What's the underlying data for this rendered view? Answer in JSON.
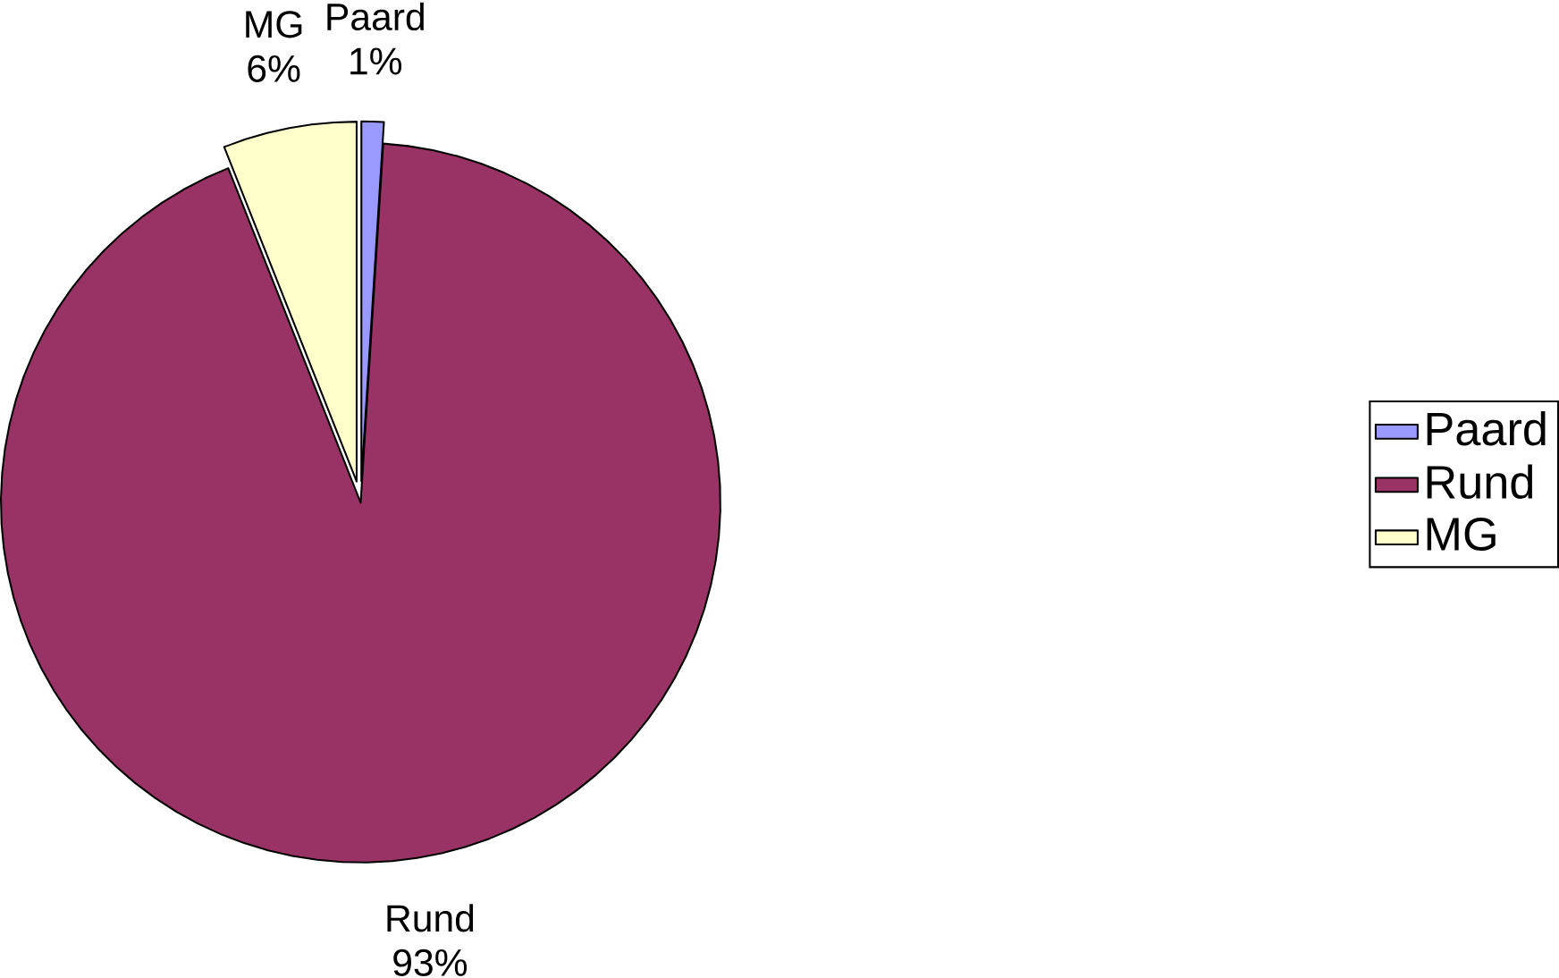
{
  "chart_data": {
    "type": "pie",
    "categories": [
      "Paard",
      "Rund",
      "MG"
    ],
    "values": [
      1,
      93,
      6
    ],
    "value_labels": [
      "1%",
      "93%",
      "6%"
    ],
    "colors": [
      "#9999ff",
      "#993366",
      "#ffffcc"
    ],
    "legend": "right"
  }
}
